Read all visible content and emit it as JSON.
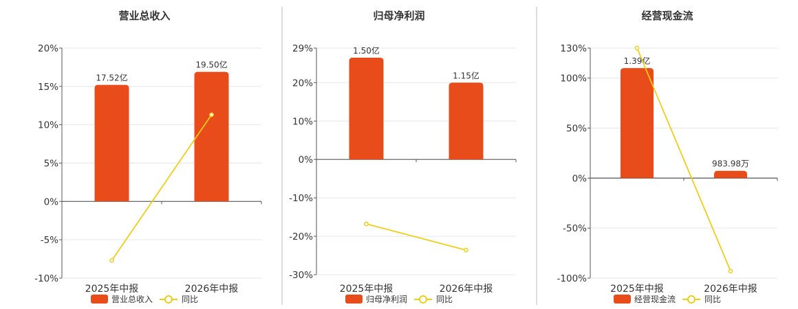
{
  "colors": {
    "bar": "#e84c1b",
    "line": "#f2cd18"
  },
  "chart_data": [
    {
      "type": "bar",
      "title": "营业总收入",
      "categories": [
        "2025年中报",
        "2026年中报"
      ],
      "series": [
        {
          "name": "营业总收入",
          "kind": "bar",
          "values": [
            15.2,
            16.9
          ],
          "labels": [
            "17.52亿",
            "19.50亿"
          ]
        },
        {
          "name": "同比",
          "kind": "line",
          "values": [
            -7.7,
            11.3
          ]
        }
      ],
      "y_ticks": [
        "20%",
        "15%",
        "10%",
        "5%",
        "0%",
        "-5%",
        "-10%"
      ],
      "ylim": [
        -10,
        20
      ],
      "grid": true,
      "legend": "bottom"
    },
    {
      "type": "bar",
      "title": "归母净利润",
      "categories": [
        "2025年中报",
        "2026年中报"
      ],
      "series": [
        {
          "name": "归母净利润",
          "kind": "bar",
          "values": [
            26.5,
            20.0
          ],
          "labels": [
            "1.50亿",
            "1.15亿"
          ]
        },
        {
          "name": "同比",
          "kind": "line",
          "values": [
            -16.8,
            -23.6
          ]
        }
      ],
      "y_ticks": [
        "29%",
        "20%",
        "10%",
        "0%",
        "-10%",
        "-20%",
        "-30%"
      ],
      "ylim": [
        -30,
        29
      ],
      "grid": true,
      "legend": "bottom"
    },
    {
      "type": "bar",
      "title": "经营现金流",
      "categories": [
        "2025年中报",
        "2026年中报"
      ],
      "series": [
        {
          "name": "经营现金流",
          "kind": "bar",
          "values": [
            110,
            7.3
          ],
          "labels": [
            "1.39亿",
            "983.98万"
          ]
        },
        {
          "name": "同比",
          "kind": "line",
          "values": [
            130,
            -93
          ]
        }
      ],
      "y_ticks": [
        "130%",
        "100%",
        "50%",
        "0%",
        "-50%",
        "-100%"
      ],
      "ylim": [
        -100,
        130
      ],
      "grid": true,
      "legend": "bottom"
    }
  ]
}
